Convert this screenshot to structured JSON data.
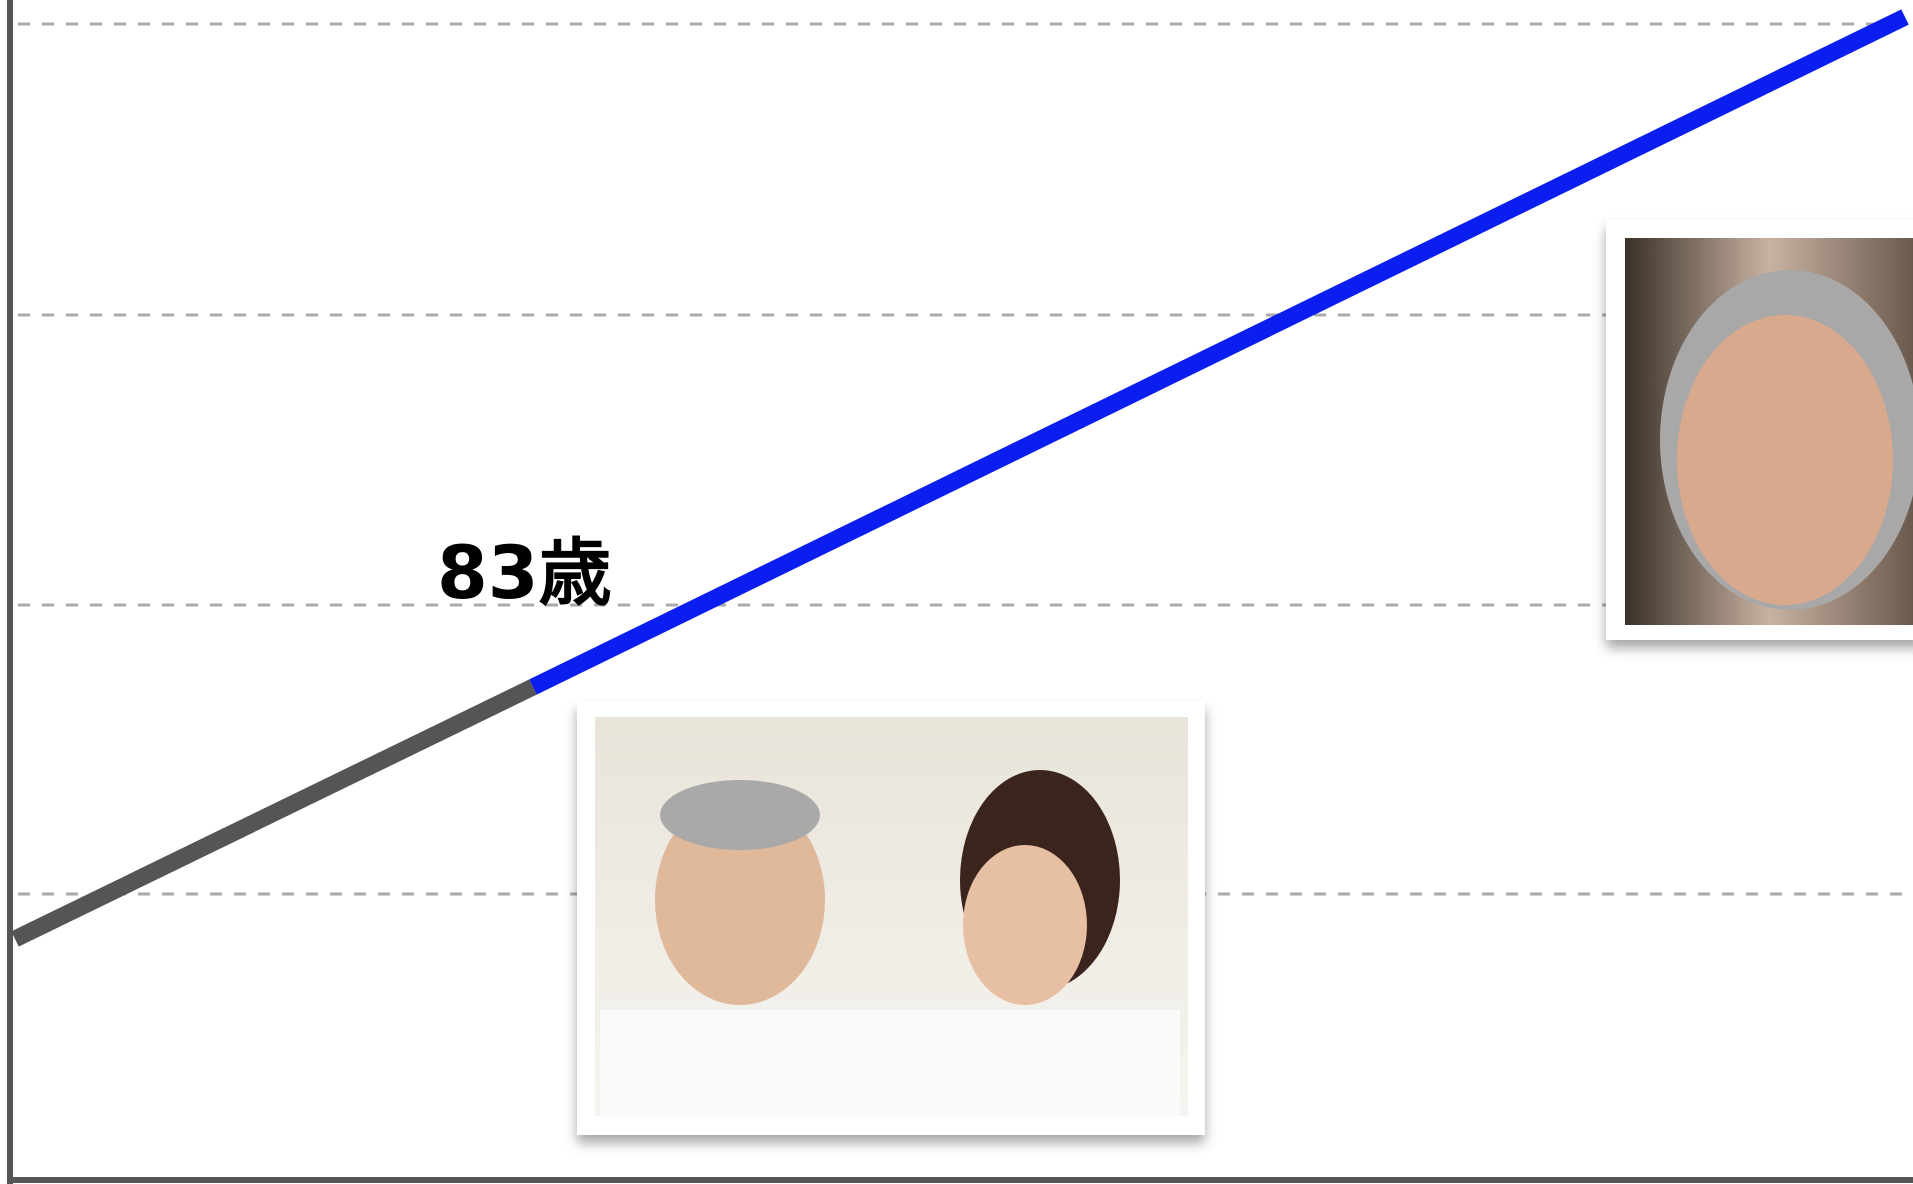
{
  "slide": {
    "annotation": "83歳"
  }
}
